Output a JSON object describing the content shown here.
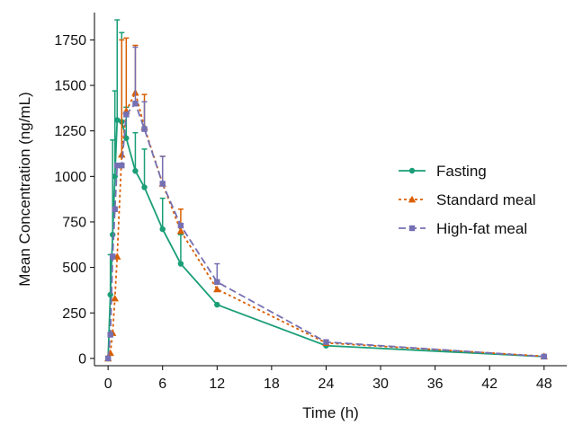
{
  "chart_data": {
    "type": "line",
    "title": "",
    "xlabel": "Time (h)",
    "ylabel": "Mean Concentration (ng/mL)",
    "xlim": [
      -1.5,
      50.5
    ],
    "ylim": [
      -40,
      1900
    ],
    "xticks": [
      0,
      6,
      12,
      18,
      24,
      30,
      36,
      42,
      48
    ],
    "yticks": [
      0,
      250,
      500,
      750,
      1000,
      1250,
      1500,
      1750
    ],
    "grid": false,
    "legend_position": "right",
    "series": [
      {
        "name": "Fasting",
        "color": "#1a9e77",
        "marker": "circle",
        "dash": "solid",
        "x": [
          0,
          0.25,
          0.5,
          0.75,
          1,
          1.5,
          2,
          3,
          4,
          6,
          8,
          12,
          24,
          48
        ],
        "y": [
          0,
          350,
          680,
          1000,
          1310,
          1300,
          1210,
          1030,
          940,
          710,
          520,
          295,
          70,
          10
        ],
        "err": [
          0,
          220,
          520,
          470,
          550,
          490,
          170,
          210,
          210,
          170,
          160,
          0,
          0,
          0
        ]
      },
      {
        "name": "Standard meal",
        "color": "#d95f02",
        "marker": "triangle",
        "dash": "dotted",
        "x": [
          0,
          0.25,
          0.5,
          0.75,
          1,
          1.5,
          2,
          3,
          4,
          6,
          8,
          12,
          24,
          48
        ],
        "y": [
          0,
          30,
          140,
          330,
          560,
          1120,
          1360,
          1460,
          1270,
          960,
          700,
          380,
          85,
          12
        ],
        "err": [
          0,
          0,
          0,
          0,
          0,
          630,
          400,
          260,
          180,
          150,
          120,
          0,
          0,
          0
        ]
      },
      {
        "name": "High-fat meal",
        "color": "#7570b3",
        "marker": "square",
        "dash": "dashed",
        "x": [
          0,
          0.25,
          0.5,
          0.75,
          1,
          1.5,
          2,
          3,
          4,
          6,
          8,
          12,
          24,
          48
        ],
        "y": [
          0,
          130,
          560,
          820,
          1060,
          1060,
          1340,
          1400,
          1260,
          960,
          730,
          420,
          90,
          10
        ],
        "err": [
          0,
          0,
          0,
          0,
          0,
          0,
          0,
          310,
          150,
          150,
          0,
          100,
          0,
          0
        ]
      }
    ]
  }
}
